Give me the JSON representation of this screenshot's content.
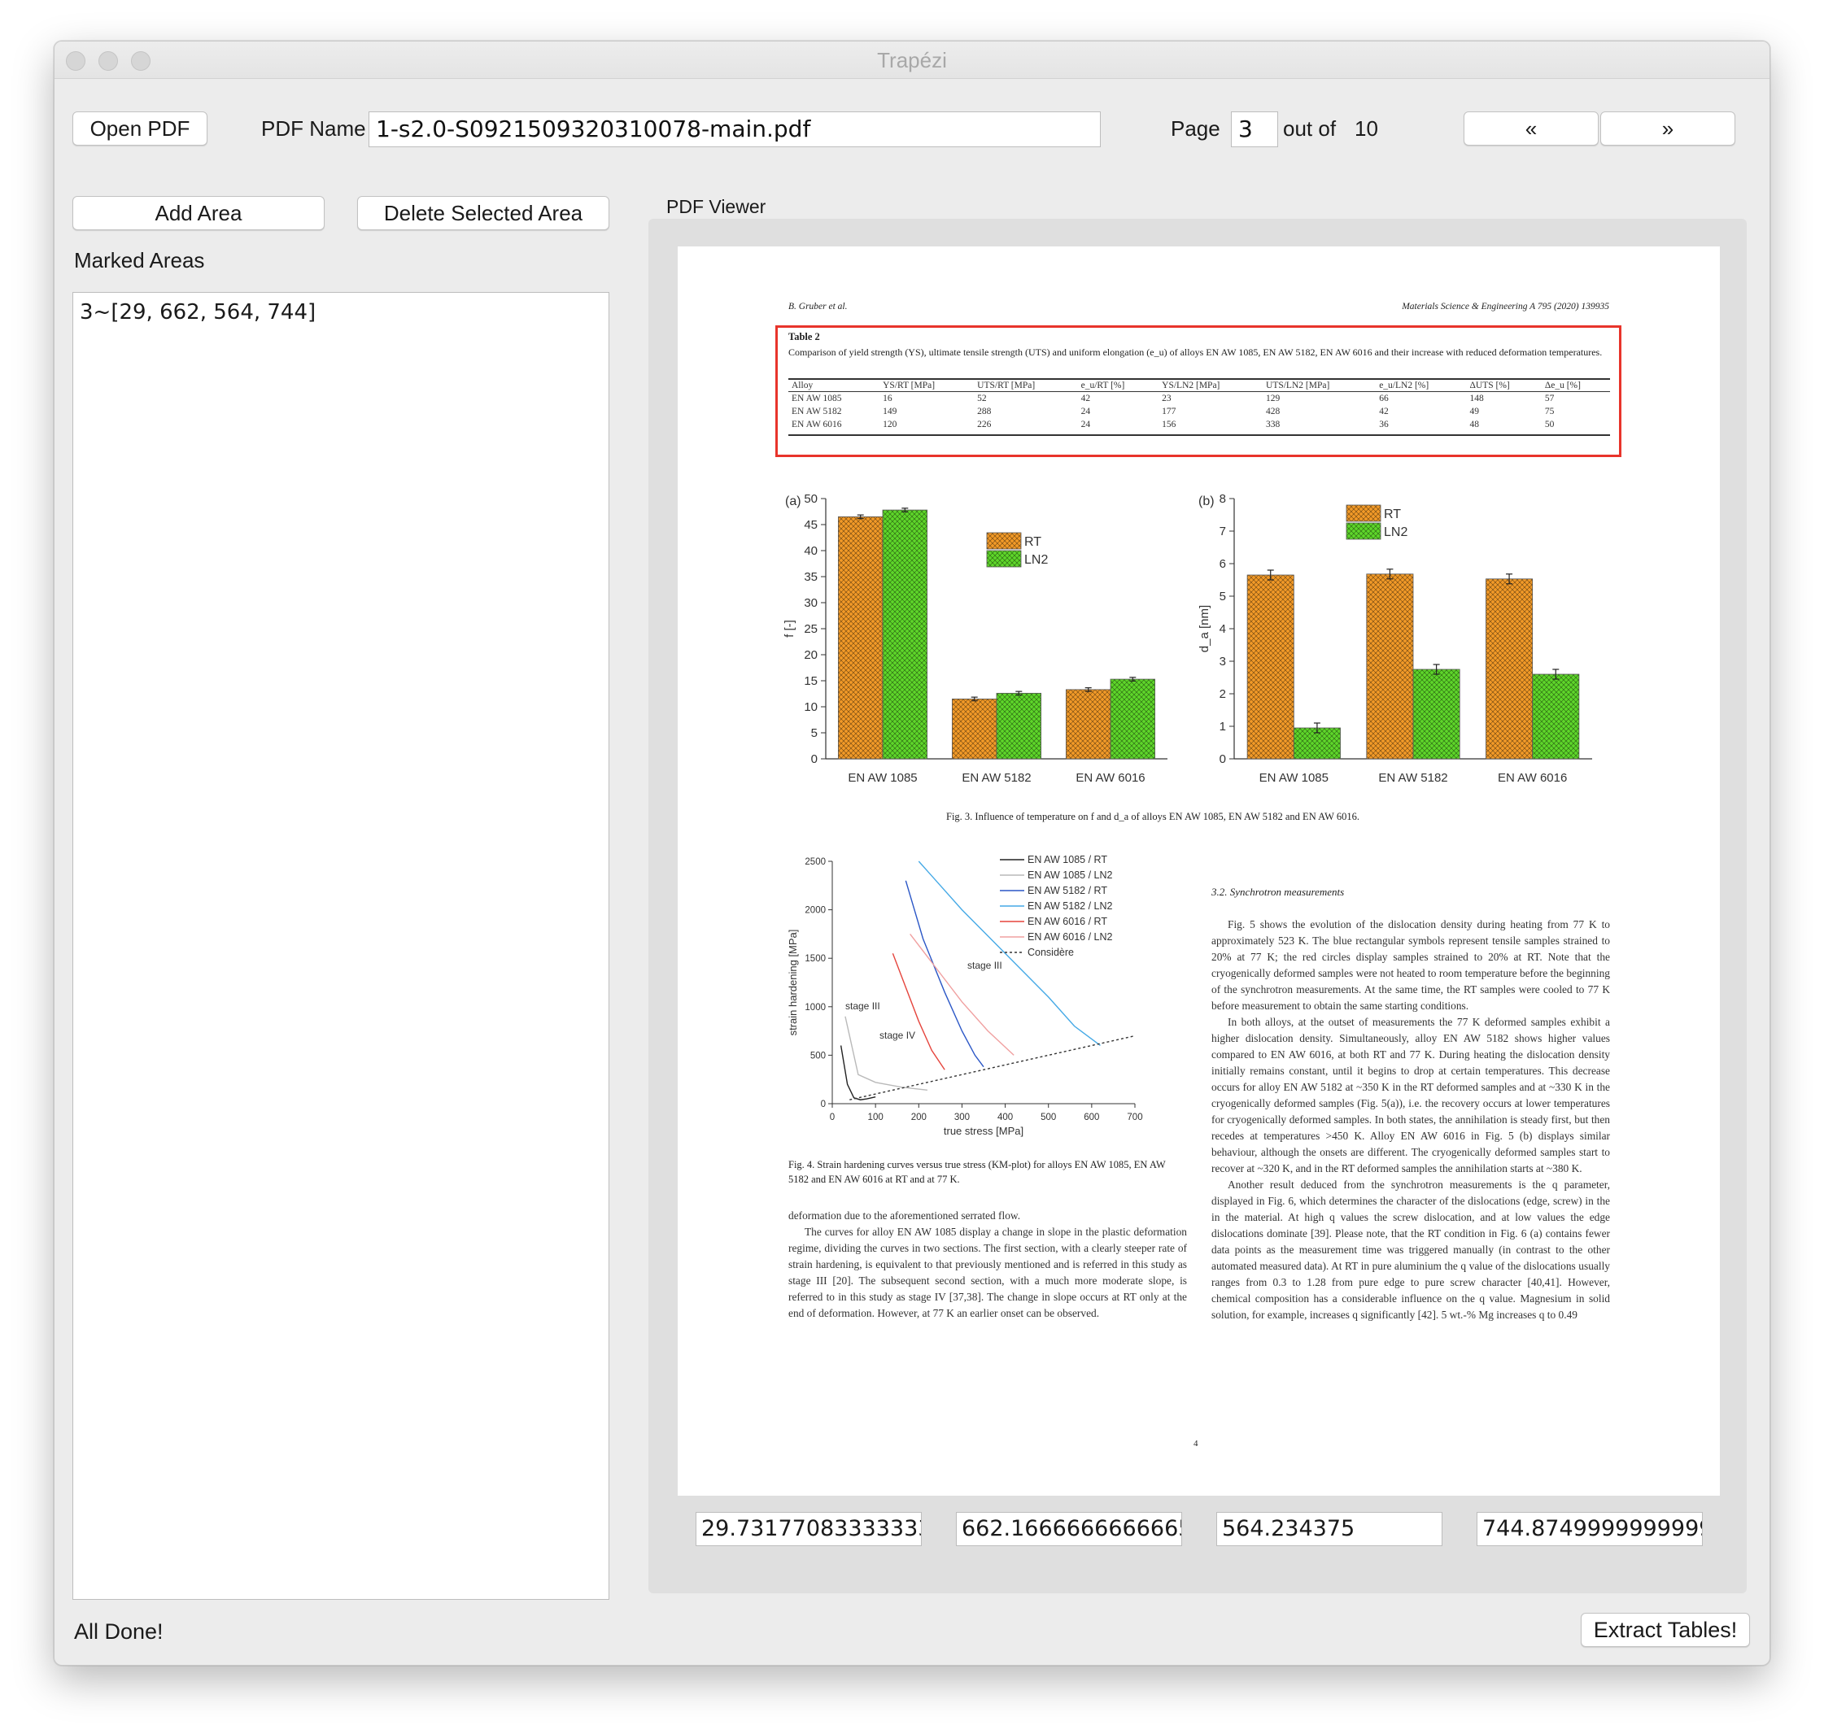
{
  "window": {
    "title": "Trapézi"
  },
  "toolbar": {
    "open_pdf": "Open PDF",
    "pdf_name_label": "PDF Name",
    "pdf_name_value": "1-s2.0-S0921509320310078-main.pdf",
    "page_label": "Page",
    "page_value": "3",
    "out_of_label": "out of",
    "total_pages": "10",
    "prev_label": "«",
    "next_label": "»"
  },
  "left_panel": {
    "add_area": "Add Area",
    "delete_area": "Delete Selected Area",
    "marked_areas_label": "Marked Areas",
    "marked_areas": [
      "3~[29, 662, 564, 744]"
    ]
  },
  "viewer": {
    "title": "PDF Viewer",
    "coords": [
      "29.73177083333333",
      "662.1666666666665",
      "564.234375",
      "744.8749999999999"
    ]
  },
  "status": "All Done!",
  "extract_button": "Extract Tables!",
  "pdf": {
    "header_left": "B. Gruber et al.",
    "header_right": "Materials Science & Engineering A 795 (2020) 139935",
    "table": {
      "title": "Table 2",
      "caption": "Comparison of yield strength (YS), ultimate tensile strength (UTS) and uniform elongation (e_u) of alloys EN AW 1085, EN AW 5182, EN AW 6016 and their increase with reduced deformation temperatures.",
      "headers": [
        "Alloy",
        "YS/RT [MPa]",
        "UTS/RT [MPa]",
        "e_u/RT [%]",
        "YS/LN2 [MPa]",
        "UTS/LN2 [MPa]",
        "e_u/LN2 [%]",
        "ΔUTS [%]",
        "Δe_u [%]"
      ],
      "rows": [
        [
          "EN AW 1085",
          "16",
          "52",
          "42",
          "23",
          "129",
          "66",
          "148",
          "57"
        ],
        [
          "EN AW 5182",
          "149",
          "288",
          "24",
          "177",
          "428",
          "42",
          "49",
          "75"
        ],
        [
          "EN AW 6016",
          "120",
          "226",
          "24",
          "156",
          "338",
          "36",
          "48",
          "50"
        ]
      ]
    },
    "fig3": {
      "caption": "Fig. 3. Influence of temperature on f and d_a of alloys EN AW 1085, EN AW 5182 and EN AW 6016.",
      "panel_a": "(a)",
      "panel_b": "(b)",
      "legend": [
        "RT",
        "LN2"
      ],
      "colors": {
        "rt": "#f29a28",
        "ln2": "#5ed62a"
      }
    },
    "fig4": {
      "caption": "Fig. 4. Strain hardening curves versus true stress (KM-plot) for alloys EN AW 1085, EN AW 5182 and EN AW 6016 at RT and at 77 K.",
      "legend": [
        "EN AW 1085 / RT",
        "EN AW 1085 / LN2",
        "EN AW 5182 / RT",
        "EN AW 5182 / LN2",
        "EN AW 6016 / RT",
        "EN AW 6016 / LN2",
        "Considère"
      ],
      "annotations": [
        "stage III",
        "stage IV",
        "stage III"
      ]
    },
    "section_title": "3.2. Synchrotron measurements",
    "left_text": [
      "deformation due to the aforementioned serrated flow.",
      "The curves for alloy EN AW 1085 display a change in slope in the plastic deformation regime, dividing the curves in two sections. The first section, with a clearly steeper rate of strain hardening, is equivalent to that previously mentioned and is referred in this study as stage III [20]. The subsequent second section, with a much more moderate slope, is referred to in this study as stage IV [37,38]. The change in slope occurs at RT only at the end of deformation. However, at 77 K an earlier onset can be observed."
    ],
    "right_text": [
      "Fig. 5 shows the evolution of the dislocation density during heating from 77 K to approximately 523 K. The blue rectangular symbols represent tensile samples strained to 20% at 77 K; the red circles display samples strained to 20% at RT. Note that the cryogenically deformed samples were not heated to room temperature before the beginning of the synchrotron measurements. At the same time, the RT samples were cooled to 77 K before measurement to obtain the same starting conditions.",
      "In both alloys, at the outset of measurements the 77 K deformed samples exhibit a higher dislocation density. Simultaneously, alloy EN AW 5182 shows higher values compared to EN AW 6016, at both RT and 77 K. During heating the dislocation density initially remains constant, until it begins to drop at certain temperatures. This decrease occurs for alloy EN AW 5182 at ~350 K in the RT deformed samples and at ~330 K in the cryogenically deformed samples (Fig. 5(a)), i.e. the recovery occurs at lower temperatures for cryogenically deformed samples. In both states, the annihilation is steady first, but then recedes at temperatures >450 K. Alloy EN AW 6016 in Fig. 5 (b) displays similar behaviour, although the onsets are different. The cryogenically deformed samples start to recover at ~320 K, and in the RT deformed samples the annihilation starts at ~380 K.",
      "Another result deduced from the synchrotron measurements is the q parameter, displayed in Fig. 6, which determines the character of the dislocations (edge, screw) in the in the material. At high q values the screw dislocation, and at low values the edge dislocations dominate [39]. Please note, that the RT condition in Fig. 6 (a) contains fewer data points as the measurement time was triggered manually (in contrast to the other automated measured data). At RT in pure aluminium the q value of the dislocations usually ranges from 0.3 to 1.28 from pure edge to pure screw character [40,41]. However, chemical composition has a considerable influence on the q value. Magnesium in solid solution, for example, increases q significantly [42]. 5 wt.-% Mg increases q to 0.49"
    ],
    "page_number": "4"
  },
  "chart_data": [
    {
      "type": "bar",
      "title": "(a)",
      "xlabel": "",
      "ylabel": "f [-]",
      "ylim": [
        0,
        50
      ],
      "categories": [
        "EN AW 1085",
        "EN AW 5182",
        "EN AW 6016"
      ],
      "series": [
        {
          "name": "RT",
          "values": [
            46.5,
            11.5,
            13.3
          ]
        },
        {
          "name": "LN2",
          "values": [
            47.8,
            12.6,
            15.3
          ]
        }
      ],
      "legend": "top-right",
      "grid": false
    },
    {
      "type": "bar",
      "title": "(b)",
      "xlabel": "",
      "ylabel": "d_a [nm]",
      "ylim": [
        0,
        8
      ],
      "categories": [
        "EN AW 1085",
        "EN AW 5182",
        "EN AW 6016"
      ],
      "series": [
        {
          "name": "RT",
          "values": [
            5.65,
            5.68,
            5.53
          ]
        },
        {
          "name": "LN2",
          "values": [
            0.95,
            2.75,
            2.6
          ]
        }
      ],
      "legend": "top-center",
      "grid": false
    },
    {
      "type": "line",
      "title": "",
      "xlabel": "true stress [MPa]",
      "ylabel": "strain hardening [MPa]",
      "xlim": [
        0,
        700
      ],
      "ylim": [
        0,
        2500
      ],
      "xticks": [
        0,
        100,
        200,
        300,
        400,
        500,
        600,
        700
      ],
      "yticks": [
        0,
        500,
        1000,
        1500,
        2000,
        2500
      ],
      "series": [
        {
          "name": "EN AW 1085 / RT",
          "x": [
            20,
            35,
            50,
            65,
            80,
            100
          ],
          "y": [
            600,
            200,
            60,
            40,
            50,
            70
          ]
        },
        {
          "name": "EN AW 1085 / LN2",
          "x": [
            30,
            60,
            100,
            160,
            220
          ],
          "y": [
            900,
            300,
            220,
            170,
            140
          ]
        },
        {
          "name": "EN AW 5182 / RT",
          "x": [
            170,
            210,
            260,
            300,
            330,
            350
          ],
          "y": [
            2300,
            1700,
            1150,
            750,
            500,
            380
          ]
        },
        {
          "name": "EN AW 5182 / LN2",
          "x": [
            200,
            300,
            400,
            500,
            560,
            620
          ],
          "y": [
            2500,
            2000,
            1550,
            1100,
            800,
            600
          ]
        },
        {
          "name": "EN AW 6016 / RT",
          "x": [
            140,
            170,
            200,
            230,
            260
          ],
          "y": [
            1550,
            1200,
            850,
            550,
            350
          ]
        },
        {
          "name": "EN AW 6016 / LN2",
          "x": [
            180,
            240,
            300,
            360,
            420
          ],
          "y": [
            1750,
            1400,
            1050,
            750,
            500
          ]
        },
        {
          "name": "Considère",
          "x": [
            40,
            700
          ],
          "y": [
            40,
            700
          ]
        }
      ],
      "legend": "top-right",
      "grid": false
    }
  ]
}
